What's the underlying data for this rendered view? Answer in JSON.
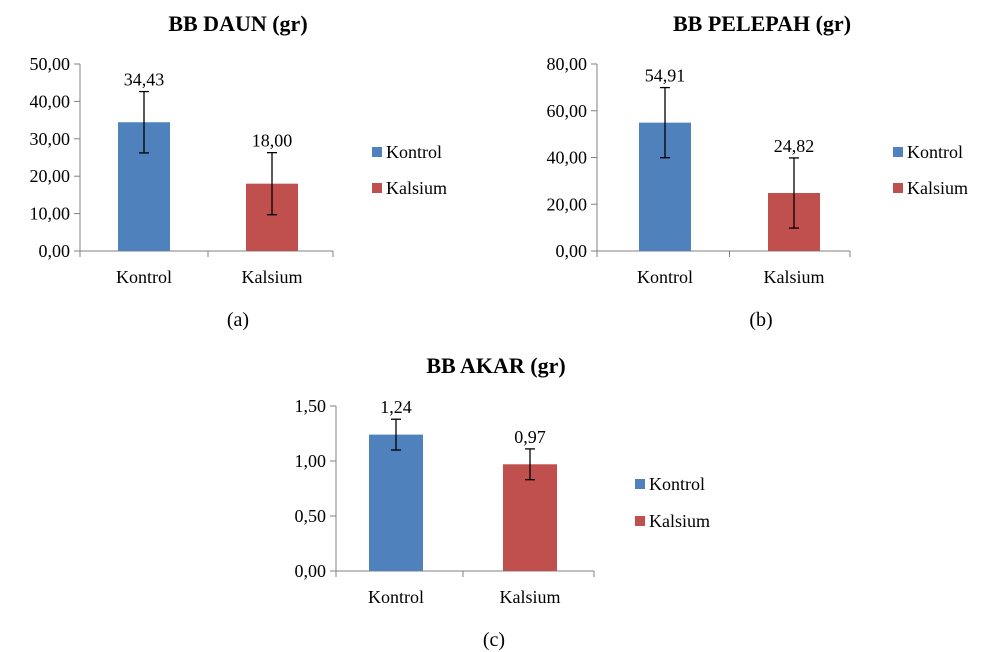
{
  "colors": {
    "Kontrol": "#4f81bd",
    "Kalsium": "#c0504d",
    "axis": "#808080",
    "error_bar": "#000000"
  },
  "chart_data": [
    {
      "type": "bar",
      "panel_label": "(a)",
      "title": "BB DAUN (gr)",
      "categories": [
        "Kontrol",
        "Kalsium"
      ],
      "values": [
        34.43,
        18.0
      ],
      "value_labels": [
        "34,43",
        "18,00"
      ],
      "error": [
        8.2,
        8.3
      ],
      "ylim": [
        0,
        50
      ],
      "yticks": [
        0,
        10,
        20,
        30,
        40,
        50
      ],
      "ytick_labels": [
        "0,00",
        "10,00",
        "20,00",
        "30,00",
        "40,00",
        "50,00"
      ],
      "legend": [
        "Kontrol",
        "Kalsium"
      ],
      "legend_position": "right",
      "grid": false
    },
    {
      "type": "bar",
      "panel_label": "(b)",
      "title": "BB PELEPAH (gr)",
      "categories": [
        "Kontrol",
        "Kalsium"
      ],
      "values": [
        54.91,
        24.82
      ],
      "value_labels": [
        "54,91",
        "24,82"
      ],
      "error": [
        15.0,
        15.0
      ],
      "ylim": [
        0,
        80
      ],
      "yticks": [
        0,
        20,
        40,
        60,
        80
      ],
      "ytick_labels": [
        "0,00",
        "20,00",
        "40,00",
        "60,00",
        "80,00"
      ],
      "legend": [
        "Kontrol",
        "Kalsium"
      ],
      "legend_position": "right",
      "grid": false
    },
    {
      "type": "bar",
      "panel_label": "(c)",
      "title": "BB AKAR (gr)",
      "categories": [
        "Kontrol",
        "Kalsium"
      ],
      "values": [
        1.24,
        0.97
      ],
      "value_labels": [
        "1,24",
        "0,97"
      ],
      "error": [
        0.14,
        0.14
      ],
      "ylim": [
        0,
        1.5
      ],
      "yticks": [
        0,
        0.5,
        1.0,
        1.5
      ],
      "ytick_labels": [
        "0,00",
        "0,50",
        "1,00",
        "1,50"
      ],
      "legend": [
        "Kontrol",
        "Kalsium"
      ],
      "legend_position": "right",
      "grid": false
    }
  ]
}
